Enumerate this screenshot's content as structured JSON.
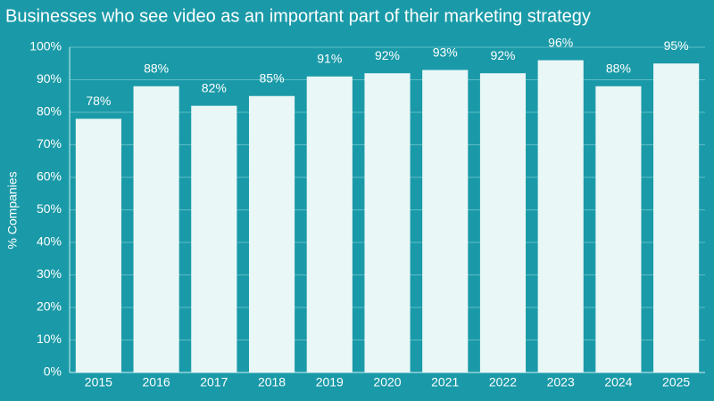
{
  "chart_data": {
    "type": "bar",
    "title": "Businesses who see video as an important part of their marketing strategy",
    "y_label": "% Companies",
    "categories": [
      "2015",
      "2016",
      "2017",
      "2018",
      "2019",
      "2020",
      "2021",
      "2022",
      "2023",
      "2024",
      "2025"
    ],
    "values": [
      78,
      88,
      82,
      85,
      91,
      92,
      93,
      92,
      96,
      88,
      95
    ],
    "value_labels": [
      "78%",
      "88%",
      "82%",
      "85%",
      "91%",
      "92%",
      "93%",
      "92%",
      "96%",
      "88%",
      "95%"
    ],
    "color": "#eaf7f7",
    "background": "#1a9aa8",
    "ylim": [
      0,
      100
    ],
    "yticks": [
      {
        "value": 0,
        "label": "0%"
      },
      {
        "value": 10,
        "label": "10%"
      },
      {
        "value": 20,
        "label": "20%"
      },
      {
        "value": 30,
        "label": "30%"
      },
      {
        "value": 40,
        "label": "40%"
      },
      {
        "value": 50,
        "label": "50%"
      },
      {
        "value": 60,
        "label": "60%"
      },
      {
        "value": 70,
        "label": "70%"
      },
      {
        "value": 80,
        "label": "80%"
      },
      {
        "value": 90,
        "label": "90%"
      },
      {
        "value": 100,
        "label": "100%"
      }
    ],
    "grid": true
  }
}
